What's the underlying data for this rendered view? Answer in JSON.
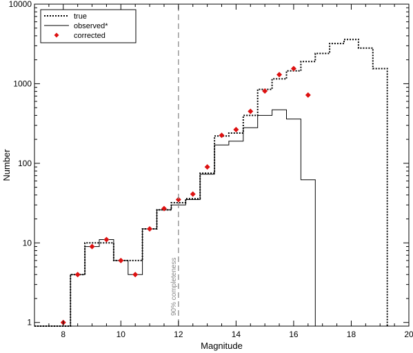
{
  "chart_data": {
    "type": "line",
    "title": "",
    "xlabel": "Magnitude",
    "ylabel": "Number",
    "xlim": [
      7,
      20
    ],
    "ylim": [
      0.9,
      10000
    ],
    "y_scale": "log",
    "x_ticks": [
      8,
      10,
      12,
      14,
      16,
      18,
      20
    ],
    "y_ticks": [
      1,
      10,
      100,
      1000,
      10000
    ],
    "y_tick_labels": [
      "1",
      "10",
      "100",
      "1000",
      "10000"
    ],
    "legend_position": "top-left",
    "annotation": {
      "x": 12,
      "text": "90% completeness",
      "color": "#888888"
    },
    "series": [
      {
        "name": "true",
        "style": "dotted-step",
        "color": "#000000",
        "x": [
          7,
          8.25,
          8.25,
          8.75,
          8.75,
          9.25,
          9.25,
          9.75,
          9.75,
          10.25,
          10.25,
          10.75,
          10.75,
          11.25,
          11.25,
          11.75,
          11.75,
          12.25,
          12.25,
          12.75,
          12.75,
          13.25,
          13.25,
          13.75,
          13.75,
          14.25,
          14.25,
          14.75,
          14.75,
          15.25,
          15.25,
          15.75,
          15.75,
          16.25,
          16.25,
          16.75,
          16.75,
          17.25,
          17.25,
          17.75,
          17.75,
          18.25,
          18.25,
          18.75,
          18.75,
          19.25,
          19.25
        ],
        "y": [
          0.9,
          0.9,
          4,
          4,
          10,
          10,
          10,
          10,
          6,
          6,
          6,
          6,
          15,
          15,
          26,
          26,
          32,
          32,
          36,
          36,
          75,
          75,
          220,
          220,
          240,
          240,
          400,
          400,
          850,
          850,
          1150,
          1150,
          1450,
          1450,
          1900,
          1900,
          2400,
          2400,
          3200,
          3200,
          3600,
          3600,
          2800,
          2800,
          1550,
          1550,
          0.9
        ]
      },
      {
        "name": "observed*",
        "style": "solid-step",
        "color": "#000000",
        "x": [
          7,
          8.25,
          8.25,
          8.75,
          8.75,
          9.25,
          9.25,
          9.75,
          9.75,
          10.25,
          10.25,
          10.75,
          10.75,
          11.25,
          11.25,
          11.75,
          11.75,
          12.25,
          12.25,
          12.75,
          12.75,
          13.25,
          13.25,
          13.75,
          13.75,
          14.25,
          14.25,
          14.75,
          14.75,
          15.25,
          15.25,
          15.75,
          15.75,
          16.25,
          16.25,
          16.75,
          16.75
        ],
        "y": [
          0.9,
          0.9,
          4,
          4,
          9,
          9,
          11,
          11,
          6,
          6,
          4,
          4,
          15,
          15,
          26,
          26,
          30,
          30,
          35,
          35,
          73,
          73,
          170,
          170,
          190,
          190,
          280,
          280,
          400,
          400,
          470,
          470,
          360,
          360,
          62,
          62,
          0.9
        ]
      },
      {
        "name": "corrected",
        "style": "marker",
        "color": "#dd1111",
        "x": [
          8,
          8.5,
          9,
          9.5,
          10,
          10.5,
          11,
          11.5,
          12,
          12.5,
          13,
          13.5,
          14,
          14.5,
          15,
          15.5,
          16,
          16.5
        ],
        "y": [
          1,
          4,
          9,
          11,
          6,
          4,
          15,
          27,
          35,
          41,
          90,
          225,
          265,
          450,
          810,
          1300,
          1550,
          720
        ]
      }
    ]
  }
}
